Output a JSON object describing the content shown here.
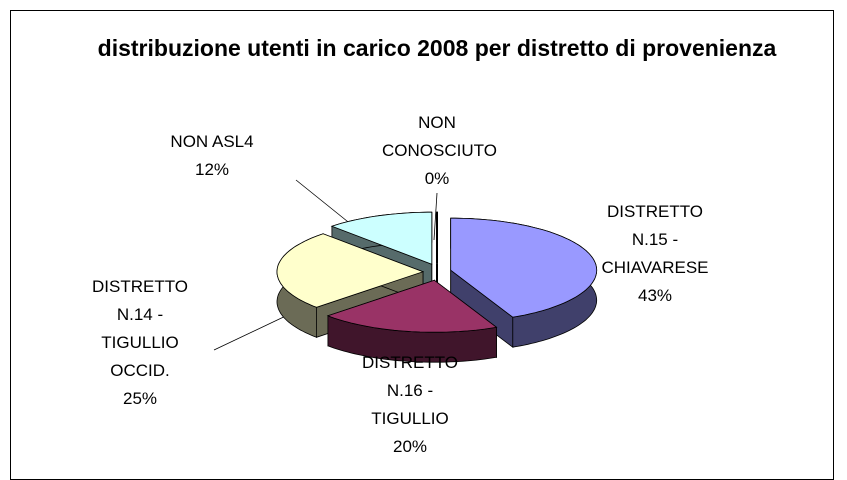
{
  "chart_data": {
    "type": "pie",
    "title": "distribuzione utenti in carico 2008 per distretto di provenienza",
    "categories": [
      "DISTRETTO N.15 - CHIAVARESE",
      "DISTRETTO N.16 - TIGULLIO",
      "DISTRETTO N.14 - TIGULLIO OCCID.",
      "NON ASL4",
      "NON CONOSCIUTO"
    ],
    "values": [
      43,
      20,
      25,
      12,
      0
    ],
    "value_labels": [
      "43%",
      "20%",
      "25%",
      "12%",
      "0%"
    ],
    "colors": [
      "#9999ff",
      "#993366",
      "#ffffcc",
      "#ccffff",
      "#000000"
    ]
  }
}
